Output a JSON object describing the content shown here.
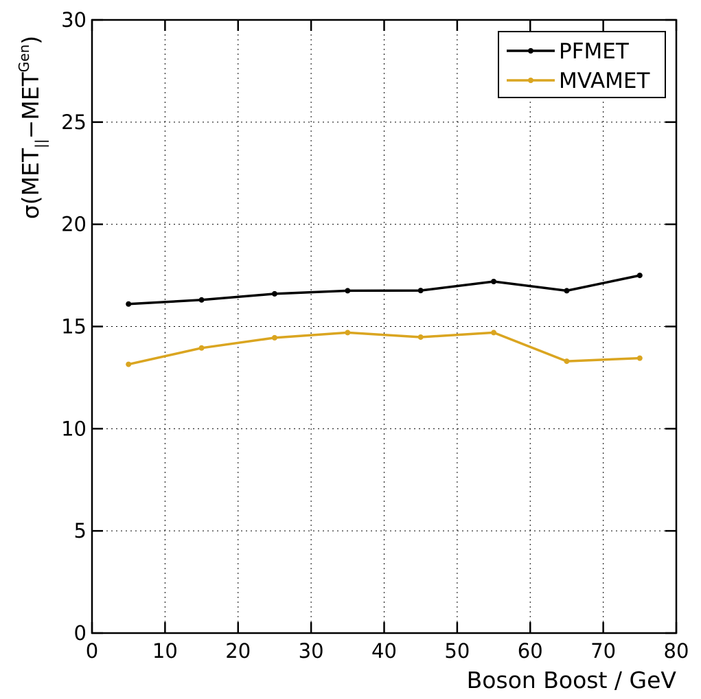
{
  "chart_data": {
    "type": "line",
    "xlabel": "Boson Boost / GeV",
    "ylabel": {
      "prefix": "σ(MET",
      "sub": "||",
      "middle": "−MET",
      "sup": "Gen",
      "suffix": ")"
    },
    "xlim": [
      0,
      80
    ],
    "ylim": [
      0,
      30
    ],
    "xticks": [
      "0",
      "10",
      "20",
      "30",
      "40",
      "50",
      "60",
      "70",
      "80"
    ],
    "yticks": [
      "0",
      "5",
      "10",
      "15",
      "20",
      "25",
      "30"
    ],
    "grid": true,
    "legend_position": "top-right",
    "x": [
      5,
      15,
      25,
      35,
      45,
      55,
      65,
      75
    ],
    "series": [
      {
        "name": "PFMET",
        "color": "#000000",
        "values": [
          16.1,
          16.3,
          16.6,
          16.75,
          16.76,
          17.2,
          16.75,
          17.5
        ]
      },
      {
        "name": "MVAMET",
        "color": "#DAA520",
        "values": [
          13.15,
          13.95,
          14.45,
          14.7,
          14.48,
          14.7,
          13.3,
          13.45
        ]
      }
    ]
  }
}
